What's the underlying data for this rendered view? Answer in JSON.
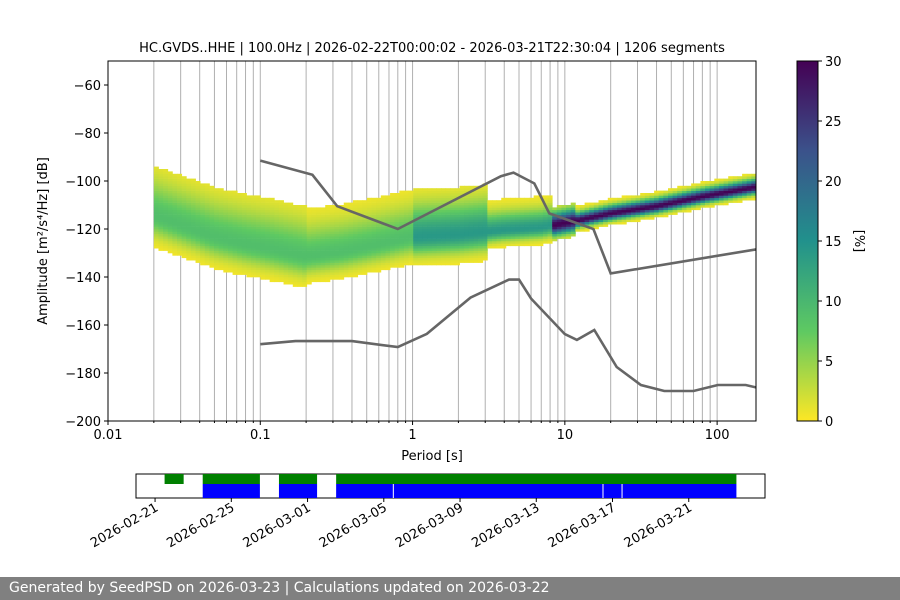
{
  "chart_data": {
    "type": "heatmap",
    "title": "HC.GVDS..HHE | 100.0Hz | 2026-02-22T00:00:02 - 2026-03-21T22:30:04 | 1206 segments",
    "xlabel": "Period [s]",
    "ylabel": "Amplitude [m²/s⁴/Hz] [dB]",
    "x_scale": "log",
    "xlim": [
      0.01,
      180
    ],
    "ylim": [
      -200,
      -50
    ],
    "x_ticks": [
      0.01,
      0.1,
      1,
      10,
      100
    ],
    "x_tick_labels": [
      "0.01",
      "0.1",
      "1",
      "10",
      "100"
    ],
    "y_ticks": [
      -200,
      -180,
      -160,
      -140,
      -120,
      -100,
      -80,
      -60
    ],
    "y_tick_labels": [
      "−200",
      "−180",
      "−160",
      "−140",
      "−120",
      "−100",
      "−80",
      "−60"
    ],
    "grid": "vertical",
    "colorbar": {
      "label": "[%]",
      "range": [
        0,
        30
      ],
      "ticks": [
        0,
        5,
        10,
        15,
        20,
        25,
        30
      ],
      "tick_labels": [
        "0",
        "5",
        "10",
        "15",
        "20",
        "25",
        "30"
      ],
      "colormap": [
        "#fde725",
        "#5ec962",
        "#21918c",
        "#3b528b",
        "#440154"
      ]
    },
    "psd_mode": [
      [
        0.02,
        -115
      ],
      [
        0.03,
        -119
      ],
      [
        0.05,
        -124
      ],
      [
        0.08,
        -127
      ],
      [
        0.12,
        -129
      ],
      [
        0.2,
        -132
      ],
      [
        0.35,
        -130
      ],
      [
        0.6,
        -127
      ],
      [
        1,
        -124
      ],
      [
        2,
        -123
      ],
      [
        4,
        -121
      ],
      [
        7,
        -120
      ],
      [
        12,
        -117
      ],
      [
        20,
        -114
      ],
      [
        40,
        -111
      ],
      [
        80,
        -107
      ],
      [
        180,
        -103
      ]
    ],
    "nhnm": [
      [
        0.1,
        -91.5
      ],
      [
        0.22,
        -97.4
      ],
      [
        0.32,
        -110.5
      ],
      [
        0.8,
        -120
      ],
      [
        3.8,
        -98
      ],
      [
        4.6,
        -96.5
      ],
      [
        6.3,
        -101
      ],
      [
        7.9,
        -113.5
      ],
      [
        15.4,
        -120
      ],
      [
        20,
        -138.5
      ],
      [
        180,
        -128.5
      ]
    ],
    "nlnm": [
      [
        0.1,
        -168
      ],
      [
        0.17,
        -166.7
      ],
      [
        0.4,
        -166.7
      ],
      [
        0.8,
        -169.2
      ],
      [
        1.24,
        -163.7
      ],
      [
        2.4,
        -148.6
      ],
      [
        4.3,
        -141.1
      ],
      [
        5.0,
        -141.1
      ],
      [
        6.0,
        -149
      ],
      [
        10,
        -163.8
      ],
      [
        12,
        -166.2
      ],
      [
        15.6,
        -162.1
      ],
      [
        21.9,
        -177.5
      ],
      [
        31.6,
        -185
      ],
      [
        45,
        -187.5
      ],
      [
        70,
        -187.5
      ],
      [
        101,
        -185
      ],
      [
        154,
        -185
      ],
      [
        180,
        -186
      ]
    ]
  },
  "timeline": {
    "tick_labels": [
      "2026-02-21",
      "2026-02-25",
      "2026-03-01",
      "2026-03-05",
      "2026-03-09",
      "2026-03-13",
      "2026-03-17",
      "2026-03-21"
    ],
    "colors": {
      "available": "#008000",
      "used": "#0000ff"
    }
  },
  "footer": {
    "text": "Generated by SeedPSD on 2026-03-23 | Calculations updated on 2026-03-22"
  }
}
